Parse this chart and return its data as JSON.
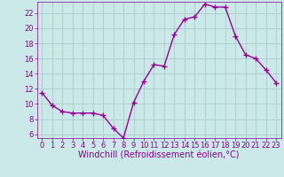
{
  "x": [
    0,
    1,
    2,
    3,
    4,
    5,
    6,
    7,
    8,
    9,
    10,
    11,
    12,
    13,
    14,
    15,
    16,
    17,
    18,
    19,
    20,
    21,
    22,
    23
  ],
  "y": [
    11.5,
    9.8,
    9.0,
    8.8,
    8.8,
    8.8,
    8.5,
    6.8,
    5.5,
    10.2,
    13.0,
    15.2,
    15.0,
    19.2,
    21.2,
    21.5,
    23.2,
    22.8,
    22.8,
    19.0,
    16.5,
    16.0,
    14.5,
    12.8
  ],
  "line_color": "#990099",
  "marker": "+",
  "marker_size": 4,
  "marker_lw": 1.0,
  "bg_color": "#cce9e9",
  "grid_color": "#aacccc",
  "xlabel": "Windchill (Refroidissement éolien,°C)",
  "ylim": [
    5.5,
    23.5
  ],
  "xlim": [
    -0.5,
    23.5
  ],
  "yticks": [
    6,
    8,
    10,
    12,
    14,
    16,
    18,
    20,
    22
  ],
  "xticks": [
    0,
    1,
    2,
    3,
    4,
    5,
    6,
    7,
    8,
    9,
    10,
    11,
    12,
    13,
    14,
    15,
    16,
    17,
    18,
    19,
    20,
    21,
    22,
    23
  ],
  "tick_color": "#880088",
  "label_color": "#880088",
  "spine_color": "#880088",
  "tick_fontsize": 6,
  "xlabel_fontsize": 7
}
